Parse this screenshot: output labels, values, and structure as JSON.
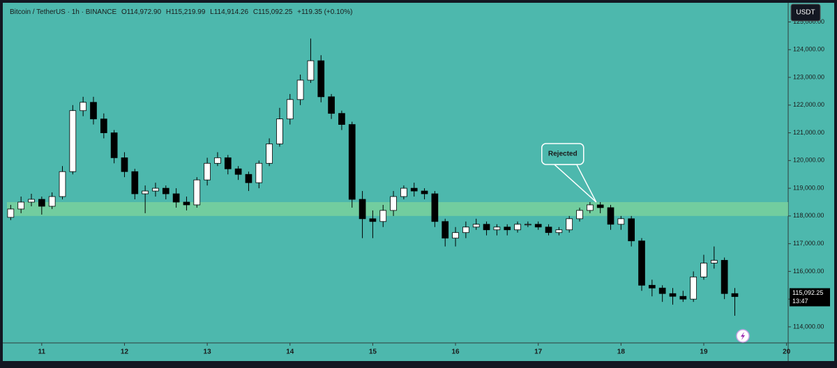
{
  "chart_data": {
    "type": "candlestick",
    "symbol": "Bitcoin / TetherUS · 1h · BINANCE",
    "ohlc_labels": [
      "O114,972.90",
      "H115,219.99",
      "L114,914.26",
      "C115,092.25"
    ],
    "change_label": "+119.35 (+0.10%)",
    "currency": "USDT",
    "last_price_label": "115,092.25",
    "countdown": "13:47",
    "annotation": {
      "text": "Rejected",
      "x": 17.7,
      "y": 118400
    },
    "zone": [
      118000,
      118500
    ],
    "up_color": "#ffffff",
    "down_color": "#000000",
    "zone_color": "#7fd49b",
    "background": "#4db8ad",
    "xlim": [
      10.58,
      20.02
    ],
    "xticks": [
      11,
      12,
      13,
      14,
      15,
      16,
      17,
      18,
      19,
      20
    ],
    "ylim": [
      113420,
      125540
    ],
    "yticks": [
      {
        "value": 114000,
        "label": "114,000.00"
      },
      {
        "value": 115000,
        "label": "115,000.00"
      },
      {
        "value": 116000,
        "label": "116,000.00"
      },
      {
        "value": 117000,
        "label": "117,000.00"
      },
      {
        "value": 118000,
        "label": "118,000.00"
      },
      {
        "value": 119000,
        "label": "119,000.00"
      },
      {
        "value": 120000,
        "label": "120,000.00"
      },
      {
        "value": 121000,
        "label": "121,000.00"
      },
      {
        "value": 122000,
        "label": "122,000.00"
      },
      {
        "value": 123000,
        "label": "123,000.00"
      },
      {
        "value": 124000,
        "label": "124,000.00"
      },
      {
        "value": 125000,
        "label": "125,000.00"
      }
    ],
    "x": [
      10.625,
      10.75,
      10.875,
      11.0,
      11.125,
      11.25,
      11.375,
      11.5,
      11.625,
      11.75,
      11.875,
      12.0,
      12.125,
      12.25,
      12.375,
      12.5,
      12.625,
      12.75,
      12.875,
      13.0,
      13.125,
      13.25,
      13.375,
      13.5,
      13.625,
      13.75,
      13.875,
      14.0,
      14.125,
      14.25,
      14.375,
      14.5,
      14.625,
      14.75,
      14.875,
      15.0,
      15.125,
      15.25,
      15.375,
      15.5,
      15.625,
      15.75,
      15.875,
      16.0,
      16.125,
      16.25,
      16.375,
      16.5,
      16.625,
      16.75,
      16.875,
      17.0,
      17.125,
      17.25,
      17.375,
      17.5,
      17.625,
      17.75,
      17.875,
      18.0,
      18.125,
      18.25,
      18.375,
      18.5,
      18.625,
      18.75,
      18.875,
      19.0,
      19.125,
      19.25,
      19.375
    ],
    "open": [
      117950,
      118250,
      118500,
      118600,
      118350,
      118700,
      119600,
      121800,
      122100,
      121500,
      121000,
      120100,
      119600,
      118800,
      118900,
      119000,
      118800,
      118500,
      118400,
      119300,
      119900,
      120100,
      119700,
      119500,
      119200,
      119900,
      120600,
      121500,
      122200,
      122900,
      123600,
      122300,
      121700,
      121300,
      118600,
      117900,
      117800,
      118200,
      118700,
      119000,
      118900,
      118800,
      117800,
      117200,
      117400,
      117600,
      117700,
      117500,
      117600,
      117500,
      117700,
      117700,
      117600,
      117400,
      117500,
      117900,
      118200,
      118400,
      118300,
      117700,
      117900,
      117100,
      115500,
      115400,
      115200,
      115100,
      115000,
      115800,
      116300,
      116400,
      115200
    ],
    "high": [
      118400,
      118700,
      118800,
      118700,
      118850,
      119800,
      122000,
      122300,
      122300,
      121700,
      121100,
      120300,
      119700,
      119100,
      119200,
      119100,
      119000,
      118700,
      119400,
      120100,
      120300,
      120200,
      119800,
      119600,
      120000,
      120800,
      121900,
      122400,
      123100,
      124400,
      123800,
      122400,
      121800,
      121400,
      118900,
      118200,
      118400,
      118900,
      119100,
      119200,
      119000,
      118900,
      117900,
      117600,
      117800,
      117900,
      117800,
      117700,
      117700,
      117800,
      117800,
      117800,
      117700,
      117600,
      118000,
      118300,
      118500,
      118500,
      118400,
      118000,
      118000,
      117200,
      115700,
      115500,
      115400,
      115300,
      116000,
      116600,
      116900,
      116500,
      115400
    ],
    "low": [
      117850,
      118100,
      118350,
      118050,
      118250,
      118600,
      119500,
      121600,
      121300,
      120800,
      119900,
      119400,
      118600,
      118100,
      118700,
      118600,
      118300,
      118200,
      118300,
      119100,
      119800,
      119500,
      119300,
      118900,
      119000,
      119800,
      120500,
      121300,
      122000,
      122800,
      122100,
      121500,
      121100,
      118300,
      117200,
      117200,
      117600,
      118000,
      118600,
      118700,
      118600,
      117600,
      116900,
      116900,
      117200,
      117500,
      117300,
      117300,
      117300,
      117400,
      117600,
      117500,
      117300,
      117300,
      117400,
      117800,
      118100,
      118100,
      117500,
      117500,
      116900,
      115300,
      115100,
      114900,
      114800,
      114900,
      114900,
      115700,
      116100,
      115000,
      114400
    ],
    "close": [
      118250,
      118500,
      118600,
      118350,
      118700,
      119600,
      121800,
      122100,
      121500,
      121000,
      120100,
      119600,
      118800,
      118900,
      119000,
      118800,
      118500,
      118400,
      119300,
      119900,
      120100,
      119700,
      119500,
      119200,
      119900,
      120600,
      121500,
      122200,
      122900,
      123600,
      122300,
      121700,
      121300,
      118600,
      117900,
      117800,
      118200,
      118700,
      119000,
      118900,
      118800,
      117800,
      117200,
      117400,
      117600,
      117700,
      117500,
      117600,
      117500,
      117700,
      117700,
      117600,
      117400,
      117500,
      117900,
      118200,
      118400,
      118300,
      117700,
      117900,
      117100,
      115500,
      115400,
      115200,
      115100,
      115000,
      115800,
      116300,
      116400,
      115200,
      115092.25
    ]
  }
}
